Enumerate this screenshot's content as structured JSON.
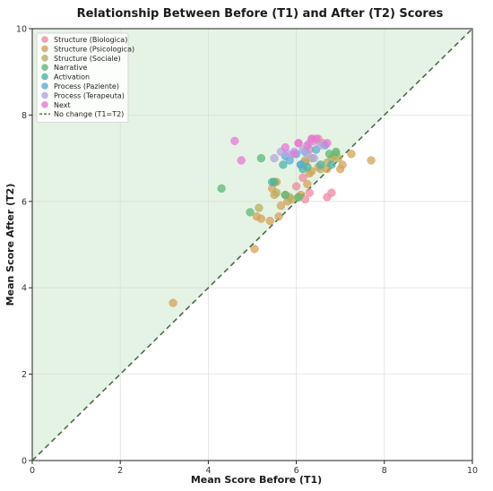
{
  "chart_data": {
    "type": "scatter",
    "title": "Relationship Between Before (T1) and After (T2) Scores",
    "xlabel": "Mean Score Before (T1)",
    "ylabel": "Mean Score After (T2)",
    "xlim": [
      0,
      10
    ],
    "ylim": [
      0,
      10
    ],
    "xticks": [
      "0",
      "2",
      "4",
      "6",
      "8",
      "10"
    ],
    "yticks": [
      "0",
      "2",
      "4",
      "6",
      "8",
      "10"
    ],
    "grid": true,
    "legend_position": "top-left",
    "reference_line": {
      "label": "No change (T1=T2)",
      "from": [
        0,
        0
      ],
      "to": [
        10,
        10
      ],
      "color": "#4a6b4a"
    },
    "improvement_region_color": "#dcefdc",
    "series": [
      {
        "name": "Structure (Biologica)",
        "color": "#f08aa3",
        "x": [
          6.2,
          6.3,
          6.0,
          6.15,
          6.7,
          6.8,
          6.3,
          6.05,
          6.6,
          6.35,
          6.2,
          6.5,
          6.4
        ],
        "y": [
          6.05,
          6.2,
          6.35,
          6.55,
          6.1,
          6.2,
          7.2,
          7.35,
          7.35,
          7.45,
          6.9,
          7.45,
          7.4
        ]
      },
      {
        "name": "Structure (Psicologica)",
        "color": "#d4a35a",
        "x": [
          3.2,
          5.05,
          5.1,
          5.2,
          5.4,
          5.5,
          5.6,
          5.65,
          5.8,
          5.85,
          6.1,
          6.3,
          6.35,
          6.5,
          6.7,
          6.8,
          7.0,
          7.05,
          7.25,
          7.7,
          5.45,
          5.55,
          6.25
        ],
        "y": [
          3.65,
          4.9,
          5.65,
          5.6,
          5.55,
          6.15,
          5.65,
          5.9,
          6.0,
          6.1,
          6.15,
          6.65,
          6.7,
          6.8,
          6.75,
          7.0,
          6.75,
          6.85,
          7.1,
          6.95,
          6.3,
          6.45,
          6.4
        ]
      },
      {
        "name": "Structure (Sociale)",
        "color": "#b5b060",
        "x": [
          5.15,
          5.55,
          5.75,
          5.9,
          6.05,
          6.2,
          6.35,
          6.55,
          6.7,
          6.85,
          6.9,
          6.95,
          5.5
        ],
        "y": [
          5.85,
          6.2,
          6.15,
          6.05,
          6.1,
          6.95,
          7.0,
          6.75,
          6.9,
          7.05,
          7.1,
          7.0,
          6.45
        ]
      },
      {
        "name": "Narrative",
        "color": "#5fb876",
        "x": [
          4.3,
          4.95,
          5.2,
          5.5,
          5.75,
          6.05,
          6.75,
          6.9
        ],
        "y": [
          6.3,
          5.75,
          7.0,
          6.45,
          6.15,
          6.1,
          7.1,
          7.15
        ]
      },
      {
        "name": "Activation",
        "color": "#4fb3a3",
        "x": [
          5.45,
          5.7,
          6.1,
          6.25,
          6.55,
          6.8,
          6.15
        ],
        "y": [
          6.45,
          6.85,
          6.85,
          6.8,
          6.85,
          6.85,
          6.75
        ]
      },
      {
        "name": "Process (Paziente)",
        "color": "#5aaed4",
        "x": [
          5.85,
          6.0,
          6.2,
          6.45,
          6.65,
          5.75,
          6.1
        ],
        "y": [
          6.95,
          7.1,
          7.15,
          7.2,
          7.3,
          7.05,
          6.85
        ]
      },
      {
        "name": "Process (Terapeuta)",
        "color": "#b3a6e0",
        "x": [
          5.5,
          5.65,
          5.8,
          5.95,
          6.15,
          6.3,
          6.4,
          6.55,
          6.25
        ],
        "y": [
          7.0,
          7.15,
          7.1,
          7.15,
          7.2,
          7.35,
          7.0,
          7.3,
          7.1
        ]
      },
      {
        "name": "Next",
        "color": "#e57ad6",
        "x": [
          4.6,
          4.75,
          5.75,
          5.95,
          6.05,
          6.25,
          6.35,
          6.7,
          6.45
        ],
        "y": [
          7.4,
          6.95,
          7.25,
          7.1,
          7.35,
          7.3,
          7.45,
          7.35,
          7.45
        ]
      }
    ]
  }
}
